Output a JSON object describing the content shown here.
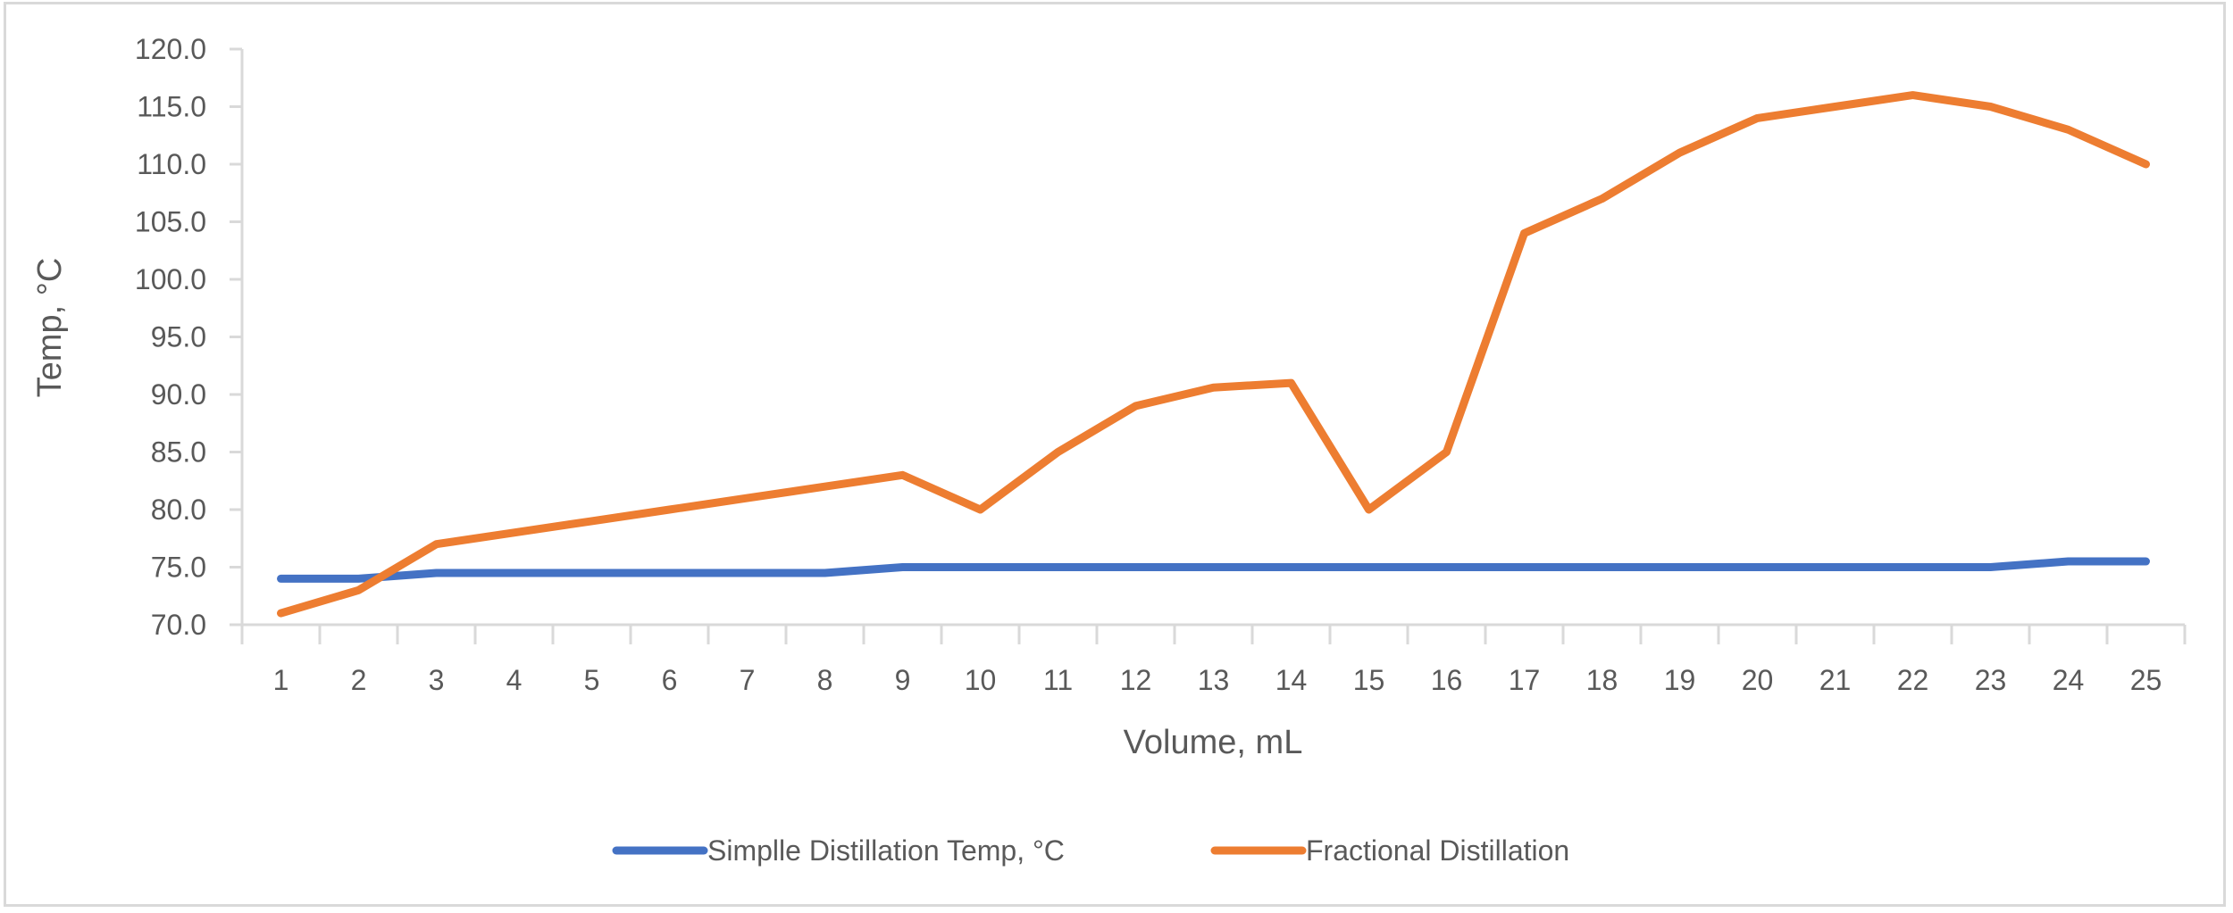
{
  "chart_data": {
    "type": "line",
    "title": "",
    "xlabel": "Volume, mL",
    "ylabel": "Temp, °C",
    "ylim": [
      70,
      120
    ],
    "ytick_step": 5,
    "ytick_labels": [
      "70.0",
      "75.0",
      "80.0",
      "85.0",
      "90.0",
      "95.0",
      "100.0",
      "105.0",
      "110.0",
      "115.0",
      "120.0"
    ],
    "categories": [
      "1",
      "2",
      "3",
      "4",
      "5",
      "6",
      "7",
      "8",
      "9",
      "10",
      "11",
      "12",
      "13",
      "14",
      "15",
      "16",
      "17",
      "18",
      "19",
      "20",
      "21",
      "22",
      "23",
      "24",
      "25"
    ],
    "grid": false,
    "legend_position": "bottom",
    "series": [
      {
        "name": "Simplle Distillation Temp, °C",
        "color": "#4472C4",
        "values": [
          74,
          74,
          74.5,
          74.5,
          74.5,
          74.5,
          74.5,
          74.5,
          75,
          75,
          75,
          75,
          75,
          75,
          75,
          75,
          75,
          75,
          75,
          75,
          75,
          75,
          75,
          75.5,
          75.5
        ]
      },
      {
        "name": "Fractional Distillation",
        "color": "#ED7D31",
        "values": [
          71,
          73,
          77,
          78,
          79,
          80,
          81,
          82,
          83,
          80,
          85,
          89,
          90.6,
          91,
          80,
          85,
          104,
          107,
          111,
          114,
          115,
          116,
          115,
          113,
          110
        ]
      }
    ]
  }
}
